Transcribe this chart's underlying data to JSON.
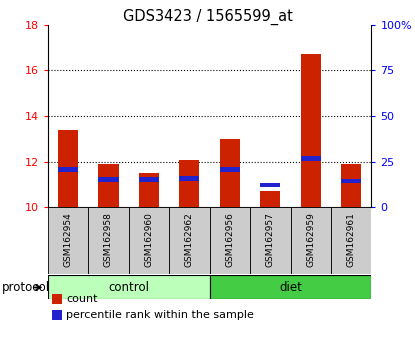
{
  "title": "GDS3423 / 1565599_at",
  "samples": [
    "GSM162954",
    "GSM162958",
    "GSM162960",
    "GSM162962",
    "GSM162956",
    "GSM162957",
    "GSM162959",
    "GSM162961"
  ],
  "groups": [
    "control",
    "control",
    "control",
    "control",
    "diet",
    "diet",
    "diet",
    "diet"
  ],
  "red_values": [
    13.4,
    11.9,
    11.5,
    12.05,
    13.0,
    10.7,
    16.7,
    11.9
  ],
  "blue_values": [
    11.55,
    11.12,
    11.12,
    11.15,
    11.55,
    10.88,
    12.02,
    11.05
  ],
  "blue_heights": [
    0.22,
    0.18,
    0.18,
    0.2,
    0.22,
    0.18,
    0.22,
    0.18
  ],
  "y_min": 10,
  "y_max": 18,
  "y_ticks": [
    10,
    12,
    14,
    16,
    18
  ],
  "right_y_ticks_pos": [
    10,
    12,
    14,
    16,
    18
  ],
  "right_y_labels": [
    "0",
    "25",
    "50",
    "75",
    "100%"
  ],
  "bar_width": 0.5,
  "red_color": "#cc2200",
  "blue_color": "#2222cc",
  "control_color": "#bbffbb",
  "diet_color": "#44cc44",
  "sample_bg": "#cccccc",
  "legend_red": "count",
  "legend_blue": "percentile rank within the sample"
}
